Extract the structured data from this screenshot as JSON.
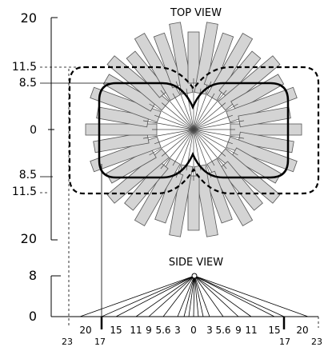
{
  "top_view": {
    "title": "TOP VIEW",
    "y_labels": {
      "top": "20",
      "outer_top": "11.5",
      "inner_top": "8.5",
      "zero": "0",
      "inner_bottom": "8.5",
      "outer_bottom": "11.5",
      "bottom": "20"
    },
    "beam_count": 36
  },
  "side_view": {
    "title": "SIDE VIEW",
    "y_labels": {
      "top": "8",
      "zero": "0"
    },
    "x_ticks_left": [
      "20",
      "15",
      "11",
      "9",
      "5.6",
      "3"
    ],
    "x_center": "0",
    "x_ticks_right": [
      "3",
      "5.6",
      "9",
      "11",
      "15",
      "20"
    ],
    "bottom_labels": {
      "left_outer": "23",
      "left_inner": "17",
      "right_inner": "17",
      "right_outer": "23"
    }
  },
  "colors": {
    "beam_fill": "#d4d4d4",
    "line": "#000000"
  }
}
